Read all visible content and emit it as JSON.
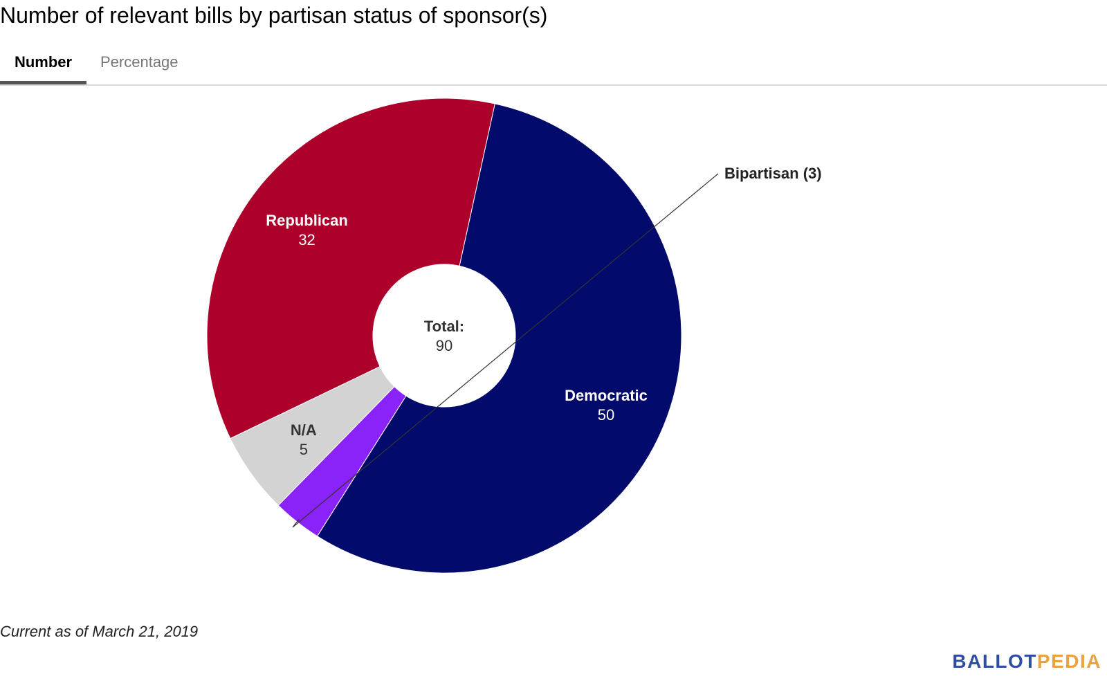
{
  "title": "Number of relevant bills by partisan status of sponsor(s)",
  "tabs": {
    "number_label": "Number",
    "percentage_label": "Percentage",
    "active": "Number"
  },
  "chart_data": {
    "type": "pie",
    "donut": true,
    "title": "Number of relevant bills by partisan status of sponsor(s)",
    "center_label": "Total:",
    "center_value": "90",
    "slices": [
      {
        "name": "Democratic",
        "value": 50,
        "color": "#020a6b",
        "label_color": "#ffffff",
        "label_mode": "inside"
      },
      {
        "name": "Bipartisan",
        "value": 3,
        "color": "#8a22fa",
        "label_color": "#222222",
        "label_mode": "outside",
        "outside_text": "Bipartisan (3)"
      },
      {
        "name": "N/A",
        "value": 5,
        "color": "#d3d3d3",
        "label_color": "#333333",
        "label_mode": "inside"
      },
      {
        "name": "Republican",
        "value": 32,
        "color": "#ad002a",
        "label_color": "#ffffff",
        "label_mode": "inside"
      }
    ]
  },
  "footer": {
    "note": "Current as of March 21, 2019",
    "logo_part1": "BALLOT",
    "logo_part2": "PEDIA"
  }
}
